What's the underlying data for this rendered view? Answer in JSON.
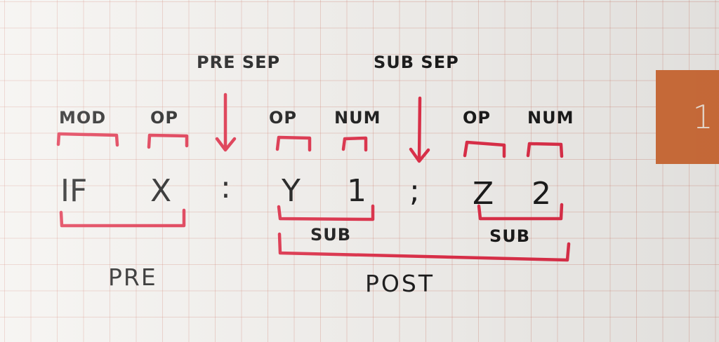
{
  "page_tab": "1",
  "colors": {
    "ink": "#1b1b1b",
    "bracket_red": "#e0304a",
    "tab_orange": "#d4713c",
    "grid_line": "#cd6e5f"
  },
  "labels": {
    "pre_sep": "PRE SEP",
    "sub_sep": "SUB SEP",
    "mod": "MOD",
    "op_1": "OP",
    "op_2": "OP",
    "num_1": "NUM",
    "op_3": "OP",
    "num_2": "NUM",
    "sub_1": "SUB",
    "sub_2": "SUB",
    "pre": "PRE",
    "post": "POST"
  },
  "tokens": {
    "mod": "IF",
    "op_x": "X",
    "pre_separator": ":",
    "op_y": "Y",
    "num_1": "1",
    "sub_separator": ";",
    "op_z": "Z",
    "num_2": "2"
  }
}
